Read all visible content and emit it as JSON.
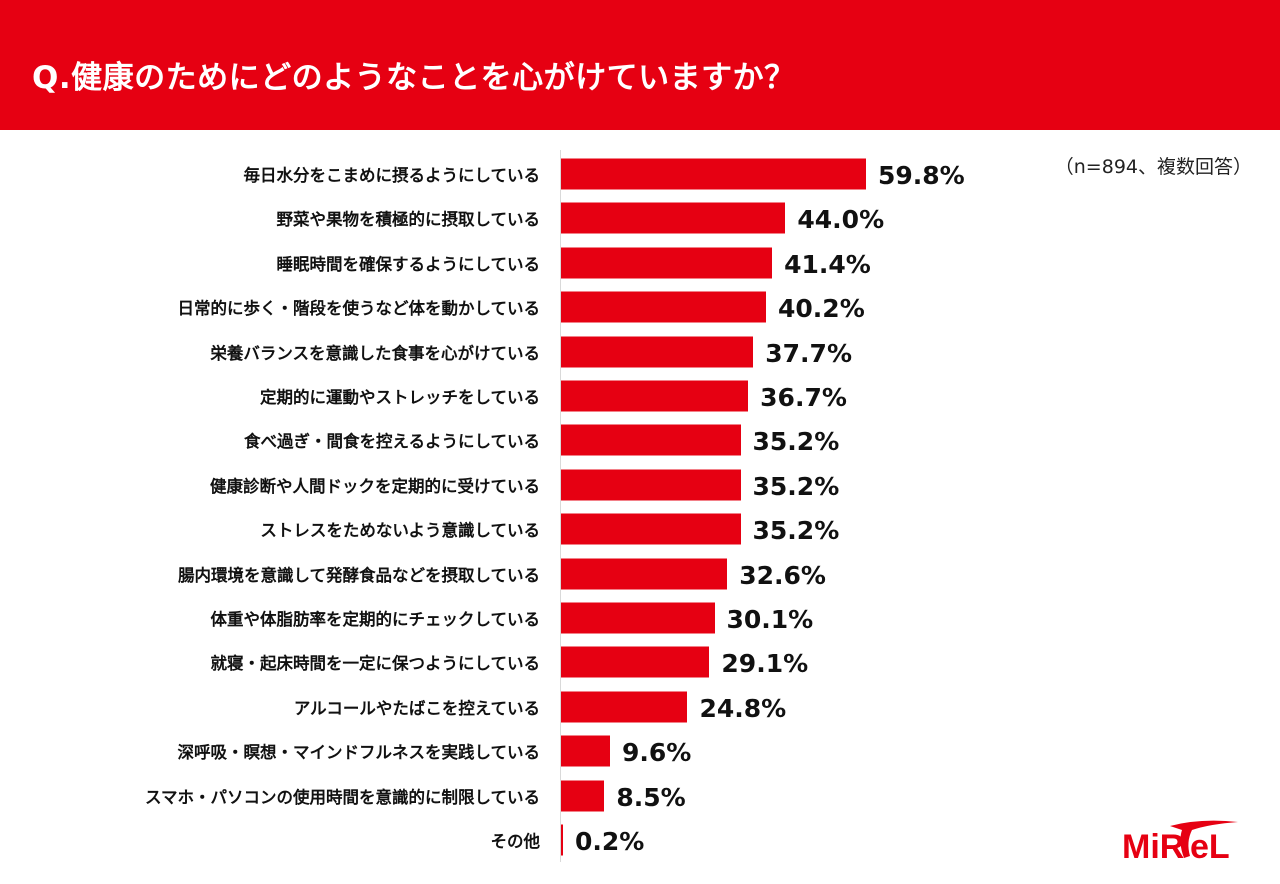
{
  "header": {
    "title": "Q.健康のためにどのようなことを心がけていますか？"
  },
  "note": "（n=894、複数回答）",
  "logo": {
    "text": "MiRTeL"
  },
  "colors": {
    "accent": "#e60012",
    "text": "#111111"
  },
  "chart_data": {
    "type": "bar",
    "orientation": "horizontal",
    "title": "Q.健康のためにどのようなことを心がけていますか？",
    "xlabel": "",
    "ylabel": "",
    "unit": "%",
    "xlim": [
      0,
      100
    ],
    "grid": false,
    "categories": [
      "毎日水分をこまめに摂るようにしている",
      "野菜や果物を積極的に摂取している",
      "睡眠時間を確保するようにしている",
      "日常的に歩く・階段を使うなど体を動かしている",
      "栄養バランスを意識した食事を心がけている",
      "定期的に運動やストレッチをしている",
      "食べ過ぎ・間食を控えるようにしている",
      "健康診断や人間ドックを定期的に受けている",
      "ストレスをためないよう意識している",
      "腸内環境を意識して発酵食品などを摂取している",
      "体重や体脂肪率を定期的にチェックしている",
      "就寝・起床時間を一定に保つようにしている",
      "アルコールやたばこを控えている",
      "深呼吸・瞑想・マインドフルネスを実践している",
      "スマホ・パソコンの使用時間を意識的に制限している",
      "その他"
    ],
    "values": [
      59.8,
      44.0,
      41.4,
      40.2,
      37.7,
      36.7,
      35.2,
      35.2,
      35.2,
      32.6,
      30.1,
      29.1,
      24.8,
      9.6,
      8.5,
      0.2
    ],
    "value_labels": [
      "59.8%",
      "44.0%",
      "41.4%",
      "40.2%",
      "37.7%",
      "36.7%",
      "35.2%",
      "35.2%",
      "35.2%",
      "32.6%",
      "30.1%",
      "29.1%",
      "24.8%",
      "9.6%",
      "8.5%",
      "0.2%"
    ]
  }
}
